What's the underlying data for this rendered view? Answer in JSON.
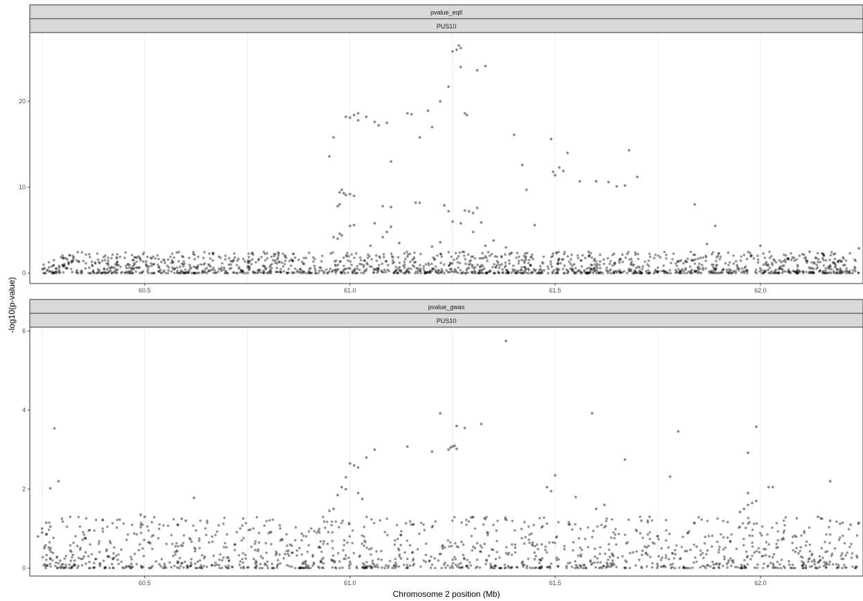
{
  "chart_data": {
    "type": "scatter",
    "xlabel": "Chromosome 2 position (Mb)",
    "ylabel": "-log10(p-value)",
    "grid": true,
    "colors": {
      "point": "#000000",
      "strip": "#d9d9d9",
      "grid": "#ebebeb"
    },
    "panels": [
      {
        "strip_top": "pvalue_eqtl",
        "strip_bottom": "PUS10",
        "xlim": [
          60.22,
          62.25
        ],
        "ylim": [
          -1.2,
          28
        ],
        "x_ticks": [
          60.5,
          61.0,
          61.5,
          62.0
        ],
        "x_tick_labels": [
          "60.5",
          "61.0",
          "61.5",
          "62.0"
        ],
        "y_ticks": [
          0,
          10,
          20
        ],
        "y_tick_labels": [
          "0",
          "10",
          "20"
        ],
        "series": [
          {
            "points": [
              [
                60.95,
                13.6
              ],
              [
                60.96,
                15.8
              ],
              [
                60.99,
                18.2
              ],
              [
                61.0,
                18.1
              ],
              [
                61.01,
                18.4
              ],
              [
                61.02,
                18.6
              ],
              [
                61.02,
                17.8
              ],
              [
                61.04,
                18.2
              ],
              [
                61.06,
                17.6
              ],
              [
                61.07,
                17.2
              ],
              [
                61.09,
                17.5
              ],
              [
                61.1,
                13.0
              ],
              [
                61.14,
                18.6
              ],
              [
                61.15,
                18.5
              ],
              [
                61.17,
                15.8
              ],
              [
                61.19,
                18.9
              ],
              [
                61.2,
                17.0
              ],
              [
                61.22,
                20.0
              ],
              [
                61.24,
                21.7
              ],
              [
                61.25,
                25.8
              ],
              [
                61.26,
                26.0
              ],
              [
                61.265,
                26.5
              ],
              [
                61.27,
                26.2
              ],
              [
                61.27,
                24.0
              ],
              [
                61.28,
                18.6
              ],
              [
                61.285,
                18.4
              ],
              [
                61.31,
                23.6
              ],
              [
                61.33,
                24.1
              ],
              [
                61.4,
                16.1
              ],
              [
                61.42,
                12.6
              ],
              [
                61.43,
                9.7
              ],
              [
                61.45,
                5.6
              ],
              [
                61.49,
                15.6
              ],
              [
                61.495,
                11.8
              ],
              [
                61.5,
                11.4
              ],
              [
                61.51,
                12.3
              ],
              [
                61.52,
                11.9
              ],
              [
                61.53,
                14.0
              ],
              [
                61.56,
                10.7
              ],
              [
                61.6,
                10.7
              ],
              [
                61.63,
                10.6
              ],
              [
                61.65,
                10.1
              ],
              [
                61.67,
                10.2
              ],
              [
                61.68,
                14.3
              ],
              [
                61.7,
                11.2
              ],
              [
                61.84,
                8.0
              ],
              [
                61.89,
                5.5
              ],
              [
                60.975,
                9.4
              ],
              [
                60.98,
                9.7
              ],
              [
                60.985,
                9.3
              ],
              [
                60.99,
                9.1
              ],
              [
                61.0,
                9.2
              ],
              [
                61.01,
                9.0
              ],
              [
                60.97,
                7.8
              ],
              [
                60.975,
                8.0
              ],
              [
                61.08,
                7.8
              ],
              [
                61.1,
                7.7
              ],
              [
                61.16,
                8.2
              ],
              [
                61.17,
                8.2
              ],
              [
                61.23,
                7.9
              ],
              [
                61.24,
                7.2
              ],
              [
                61.28,
                7.3
              ],
              [
                61.29,
                7.2
              ],
              [
                61.31,
                7.6
              ],
              [
                61.3,
                7.0
              ],
              [
                60.96,
                4.2
              ],
              [
                60.97,
                4.0
              ],
              [
                60.975,
                4.6
              ],
              [
                60.98,
                4.4
              ],
              [
                61.0,
                5.5
              ],
              [
                61.01,
                5.6
              ],
              [
                61.06,
                5.8
              ],
              [
                61.08,
                4.2
              ],
              [
                61.09,
                4.8
              ],
              [
                61.1,
                5.4
              ],
              [
                61.25,
                6.0
              ],
              [
                61.27,
                5.8
              ],
              [
                61.32,
                5.9
              ],
              [
                61.35,
                3.8
              ],
              [
                61.38,
                3.0
              ],
              [
                61.12,
                3.5
              ],
              [
                61.05,
                3.2
              ],
              [
                61.2,
                3.1
              ],
              [
                61.22,
                3.6
              ],
              [
                61.3,
                4.8
              ],
              [
                61.33,
                3.2
              ],
              [
                61.87,
                3.4
              ],
              [
                62.0,
                3.2
              ],
              [
                62.24,
                2.9
              ],
              [
                62.12,
                2.5
              ],
              [
                62.15,
                2.3
              ]
            ],
            "baseline_points": 1600,
            "baseline_range": [
              0,
              2.5
            ]
          }
        ]
      },
      {
        "strip_top": "pvalue_gwas",
        "strip_bottom": "PUS10",
        "xlim": [
          60.22,
          62.25
        ],
        "ylim": [
          -0.2,
          6.1
        ],
        "x_ticks": [
          60.5,
          61.0,
          61.5,
          62.0
        ],
        "x_tick_labels": [
          "60.5",
          "61.0",
          "61.5",
          "62.0"
        ],
        "y_ticks": [
          0,
          2,
          4,
          6
        ],
        "y_tick_labels": [
          "0",
          "2",
          "4",
          "6"
        ],
        "series": [
          {
            "points": [
              [
                61.38,
                5.75
              ],
              [
                61.22,
                3.92
              ],
              [
                61.59,
                3.92
              ],
              [
                60.28,
                3.54
              ],
              [
                61.26,
                3.6
              ],
              [
                61.32,
                3.65
              ],
              [
                61.99,
                3.58
              ],
              [
                61.8,
                3.46
              ],
              [
                61.24,
                3.0
              ],
              [
                61.245,
                3.05
              ],
              [
                61.25,
                3.08
              ],
              [
                61.255,
                3.1
              ],
              [
                61.26,
                3.02
              ],
              [
                61.28,
                3.55
              ],
              [
                61.06,
                3.0
              ],
              [
                61.14,
                3.08
              ],
              [
                61.2,
                2.95
              ],
              [
                61.67,
                2.75
              ],
              [
                61.97,
                2.92
              ],
              [
                61.0,
                2.65
              ],
              [
                61.01,
                2.6
              ],
              [
                61.02,
                2.55
              ],
              [
                60.99,
                2.3
              ],
              [
                61.04,
                2.8
              ],
              [
                60.29,
                2.2
              ],
              [
                60.27,
                2.02
              ],
              [
                61.5,
                2.35
              ],
              [
                61.78,
                2.32
              ],
              [
                62.17,
                2.2
              ],
              [
                61.99,
                1.7
              ],
              [
                61.98,
                1.65
              ],
              [
                61.97,
                1.6
              ],
              [
                61.96,
                1.5
              ],
              [
                61.95,
                1.42
              ],
              [
                62.02,
                2.05
              ],
              [
                62.03,
                2.05
              ],
              [
                61.97,
                1.9
              ],
              [
                60.97,
                1.85
              ],
              [
                60.98,
                2.05
              ],
              [
                60.99,
                2.0
              ],
              [
                60.96,
                1.5
              ],
              [
                60.95,
                1.45
              ],
              [
                61.02,
                1.9
              ],
              [
                61.03,
                1.75
              ],
              [
                60.62,
                1.78
              ],
              [
                60.6,
                1.2
              ],
              [
                60.59,
                1.25
              ],
              [
                60.58,
                1.1
              ],
              [
                60.5,
                1.3
              ],
              [
                60.49,
                1.35
              ],
              [
                60.26,
                1.15
              ],
              [
                60.27,
                1.05
              ],
              [
                60.25,
                0.9
              ],
              [
                60.26,
                0.85
              ],
              [
                60.24,
                0.8
              ],
              [
                60.25,
                1.0
              ],
              [
                62.14,
                1.3
              ],
              [
                62.15,
                1.25
              ],
              [
                62.17,
                1.2
              ],
              [
                62.2,
                1.15
              ],
              [
                62.22,
                1.1
              ],
              [
                62.24,
                1.15
              ],
              [
                61.73,
                1.3
              ],
              [
                61.71,
                1.2
              ],
              [
                61.48,
                2.05
              ],
              [
                61.49,
                1.95
              ],
              [
                61.55,
                1.8
              ],
              [
                61.6,
                1.5
              ],
              [
                61.62,
                1.6
              ]
            ],
            "baseline_points": 1300,
            "baseline_range": [
              0,
              1.3
            ]
          }
        ]
      }
    ]
  }
}
